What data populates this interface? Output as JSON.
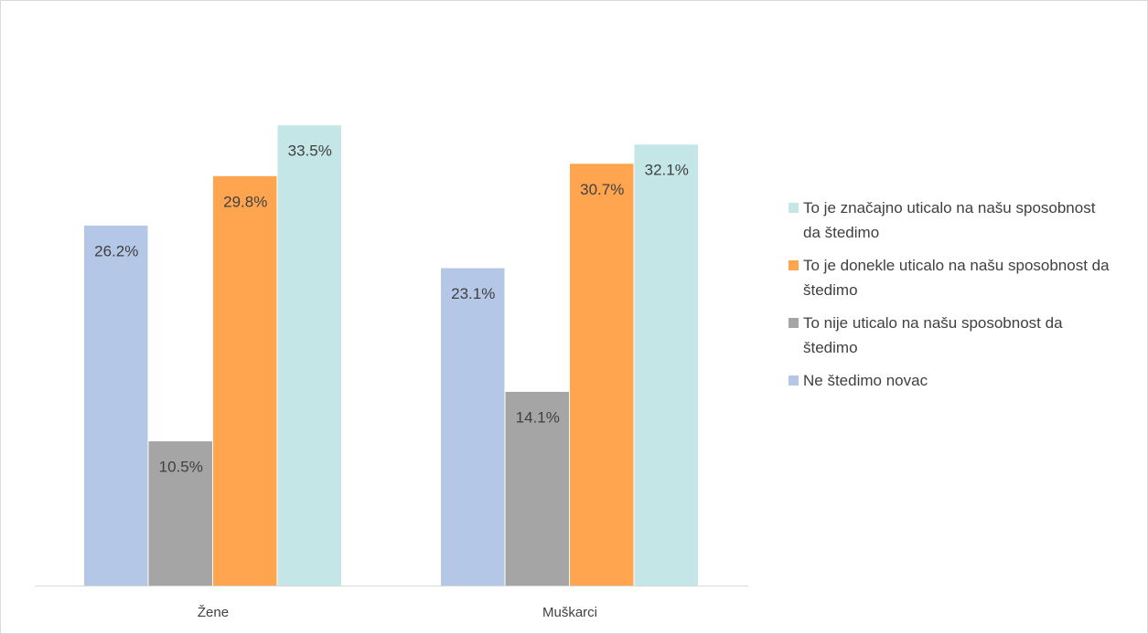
{
  "chart_data": {
    "type": "bar",
    "categories": [
      "Žene",
      "Muškarci"
    ],
    "series": [
      {
        "name": "Ne štedimo novac",
        "color": "#b4c7e7",
        "values": [
          26.2,
          23.1
        ],
        "value_labels": [
          "26.2%",
          "23.1%"
        ]
      },
      {
        "name": "To nije uticalo na našu sposobnost da štedimo",
        "color": "#a5a5a5",
        "values": [
          10.5,
          14.1
        ],
        "value_labels": [
          "10.5%",
          "14.1%"
        ]
      },
      {
        "name": "To je donekle uticalo na našu sposobnost da štedimo",
        "color": "#ffa54f",
        "values": [
          29.8,
          30.7
        ],
        "value_labels": [
          "29.8%",
          "30.7%"
        ]
      },
      {
        "name": "To je značajno uticalo na našu sposobnost da štedimo",
        "color": "#c5e6e6",
        "values": [
          33.5,
          32.1
        ],
        "value_labels": [
          "33.5%",
          "32.1%"
        ]
      }
    ],
    "legend": "right"
  }
}
